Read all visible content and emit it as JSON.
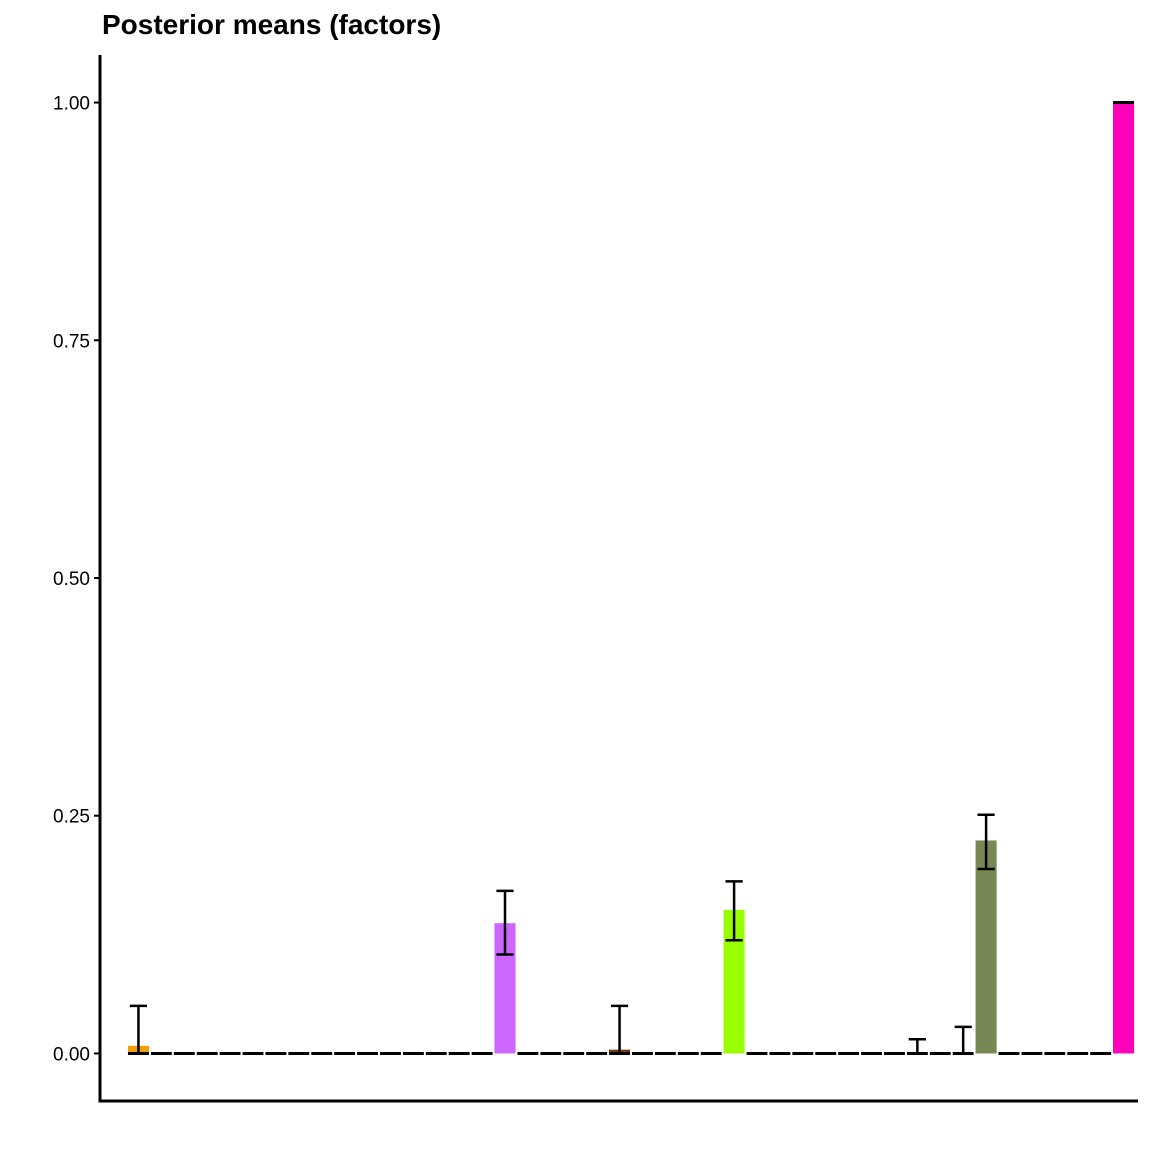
{
  "chart_data": {
    "type": "bar",
    "title": "Posterior means (factors)",
    "xlabel": "",
    "ylabel": "",
    "ylim": [
      -0.05,
      1.05
    ],
    "yticks": [
      0.0,
      0.25,
      0.5,
      0.75,
      1.0
    ],
    "ytick_labels": [
      "0.00",
      "0.25",
      "0.50",
      "0.75",
      "1.00"
    ],
    "grid": false,
    "bars": [
      {
        "value": 0.008,
        "lower": 0.0,
        "upper": 0.05,
        "color": "#f0a000",
        "show_lower": false
      },
      {
        "value": 0.0,
        "lower": 0.0,
        "upper": 0.0,
        "color": "#000000"
      },
      {
        "value": 0.0,
        "lower": 0.0,
        "upper": 0.0,
        "color": "#000000"
      },
      {
        "value": 0.0,
        "lower": 0.0,
        "upper": 0.0,
        "color": "#000000"
      },
      {
        "value": 0.0,
        "lower": 0.0,
        "upper": 0.0,
        "color": "#000000"
      },
      {
        "value": 0.0,
        "lower": 0.0,
        "upper": 0.0,
        "color": "#000000"
      },
      {
        "value": 0.0,
        "lower": 0.0,
        "upper": 0.0,
        "color": "#000000"
      },
      {
        "value": 0.0,
        "lower": 0.0,
        "upper": 0.0,
        "color": "#000000"
      },
      {
        "value": 0.0,
        "lower": 0.0,
        "upper": 0.0,
        "color": "#000000"
      },
      {
        "value": 0.0,
        "lower": 0.0,
        "upper": 0.0,
        "color": "#000000"
      },
      {
        "value": 0.0,
        "lower": 0.0,
        "upper": 0.0,
        "color": "#000000"
      },
      {
        "value": 0.0,
        "lower": 0.0,
        "upper": 0.0,
        "color": "#000000"
      },
      {
        "value": 0.0,
        "lower": 0.0,
        "upper": 0.0,
        "color": "#000000"
      },
      {
        "value": 0.0,
        "lower": 0.0,
        "upper": 0.0,
        "color": "#000000"
      },
      {
        "value": 0.0,
        "lower": 0.0,
        "upper": 0.0,
        "color": "#000000"
      },
      {
        "value": 0.0,
        "lower": 0.0,
        "upper": 0.0,
        "color": "#000000"
      },
      {
        "value": 0.137,
        "lower": 0.104,
        "upper": 0.171,
        "color": "#cc66ff"
      },
      {
        "value": 0.0,
        "lower": 0.0,
        "upper": 0.0,
        "color": "#000000"
      },
      {
        "value": 0.0,
        "lower": 0.0,
        "upper": 0.0,
        "color": "#000000"
      },
      {
        "value": 0.0,
        "lower": 0.0,
        "upper": 0.0,
        "color": "#000000"
      },
      {
        "value": 0.0,
        "lower": 0.0,
        "upper": 0.0,
        "color": "#000000"
      },
      {
        "value": 0.004,
        "lower": 0.0,
        "upper": 0.05,
        "color": "#7a3a10",
        "show_lower": false
      },
      {
        "value": 0.0,
        "lower": 0.0,
        "upper": 0.0,
        "color": "#000000"
      },
      {
        "value": 0.0,
        "lower": 0.0,
        "upper": 0.0,
        "color": "#000000"
      },
      {
        "value": 0.0,
        "lower": 0.0,
        "upper": 0.0,
        "color": "#000000"
      },
      {
        "value": 0.0,
        "lower": 0.0,
        "upper": 0.0,
        "color": "#000000"
      },
      {
        "value": 0.151,
        "lower": 0.119,
        "upper": 0.181,
        "color": "#99ff00"
      },
      {
        "value": 0.0,
        "lower": 0.0,
        "upper": 0.0,
        "color": "#000000"
      },
      {
        "value": 0.0,
        "lower": 0.0,
        "upper": 0.0,
        "color": "#000000"
      },
      {
        "value": 0.0,
        "lower": 0.0,
        "upper": 0.0,
        "color": "#000000"
      },
      {
        "value": 0.0,
        "lower": 0.0,
        "upper": 0.0,
        "color": "#000000"
      },
      {
        "value": 0.0,
        "lower": 0.0,
        "upper": 0.0,
        "color": "#000000"
      },
      {
        "value": 0.0,
        "lower": 0.0,
        "upper": 0.0,
        "color": "#000000"
      },
      {
        "value": 0.0,
        "lower": 0.0,
        "upper": 0.0,
        "color": "#000000"
      },
      {
        "value": 0.0,
        "lower": 0.0,
        "upper": 0.015,
        "color": "#000000",
        "show_lower": false
      },
      {
        "value": 0.0,
        "lower": 0.0,
        "upper": 0.0,
        "color": "#000000"
      },
      {
        "value": 0.0,
        "lower": 0.0,
        "upper": 0.028,
        "color": "#000000",
        "show_lower": false
      },
      {
        "value": 0.224,
        "lower": 0.194,
        "upper": 0.251,
        "color": "#778855"
      },
      {
        "value": 0.0,
        "lower": 0.0,
        "upper": 0.0,
        "color": "#000000"
      },
      {
        "value": 0.0,
        "lower": 0.0,
        "upper": 0.0,
        "color": "#000000"
      },
      {
        "value": 0.0,
        "lower": 0.0,
        "upper": 0.0,
        "color": "#000000"
      },
      {
        "value": 0.0,
        "lower": 0.0,
        "upper": 0.0,
        "color": "#000000"
      },
      {
        "value": 0.0,
        "lower": 0.0,
        "upper": 0.0,
        "color": "#000000"
      },
      {
        "value": 1.0,
        "lower": 1.0,
        "upper": 1.0,
        "color": "#ff00bb"
      }
    ]
  }
}
